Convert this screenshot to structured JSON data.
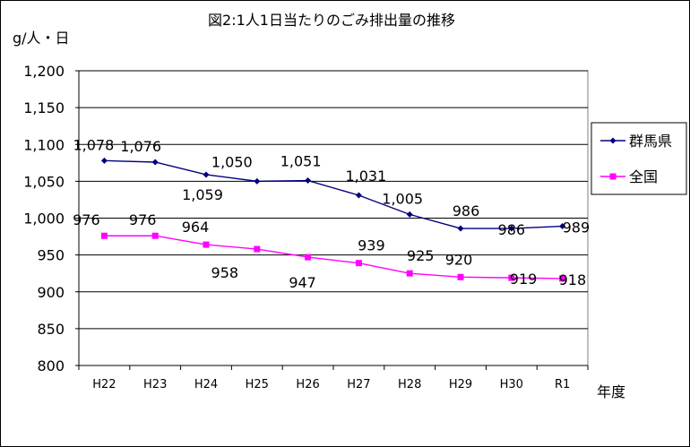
{
  "chart_data": {
    "type": "line",
    "title": "図2:1人1日当たりのごみ排出量の推移",
    "ylabel": "g/人・日",
    "xlabel": "年度",
    "categories": [
      "H22",
      "H23",
      "H24",
      "H25",
      "H26",
      "H27",
      "H28",
      "H29",
      "H30",
      "R1"
    ],
    "ylim": [
      800,
      1200
    ],
    "yticks": [
      800,
      850,
      900,
      950,
      1000,
      1050,
      1100,
      1150,
      1200
    ],
    "ytick_labels": [
      "800",
      "850",
      "900",
      "950",
      "1,000",
      "1,050",
      "1,100",
      "1,150",
      "1,200"
    ],
    "grid": true,
    "legend_position": "right",
    "series": [
      {
        "name": "群馬県",
        "color": "#000080",
        "marker": "diamond",
        "values": [
          1078,
          1076,
          1059,
          1050,
          1051,
          1031,
          1005,
          986,
          986,
          989
        ],
        "labels": [
          "1,078",
          "1,076",
          "1,059",
          "1,050",
          "1,051",
          "1,031",
          "1,005",
          "986",
          "986",
          "989"
        ]
      },
      {
        "name": "全国",
        "color": "#FF00FF",
        "marker": "square",
        "values": [
          976,
          976,
          964,
          958,
          947,
          939,
          925,
          920,
          919,
          918
        ],
        "labels": [
          "976",
          "976",
          "964",
          "958",
          "947",
          "939",
          "925",
          "920",
          "919",
          "918"
        ]
      }
    ]
  }
}
